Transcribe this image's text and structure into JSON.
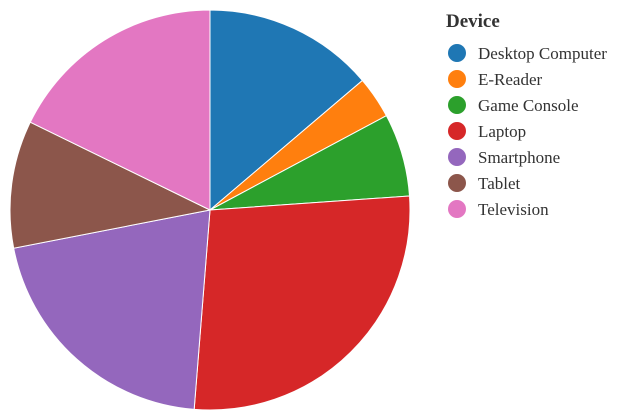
{
  "chart_data": {
    "type": "pie",
    "legend_title": "Device",
    "legend_position": "right",
    "start_angle": "top",
    "direction": "clockwise",
    "slices": [
      {
        "label": "Desktop Computer",
        "value": 14.2,
        "color": "#1f77b4"
      },
      {
        "label": "E-Reader",
        "value": 3.5,
        "color": "#ff7f0e"
      },
      {
        "label": "Game Console",
        "value": 6.9,
        "color": "#2ca02c"
      },
      {
        "label": "Laptop",
        "value": 28.2,
        "color": "#d62728"
      },
      {
        "label": "Smartphone",
        "value": 21.3,
        "color": "#9467bd"
      },
      {
        "label": "Tablet",
        "value": 10.6,
        "color": "#8c564b"
      },
      {
        "label": "Television",
        "value": 18.3,
        "color": "#e377c2"
      }
    ]
  }
}
